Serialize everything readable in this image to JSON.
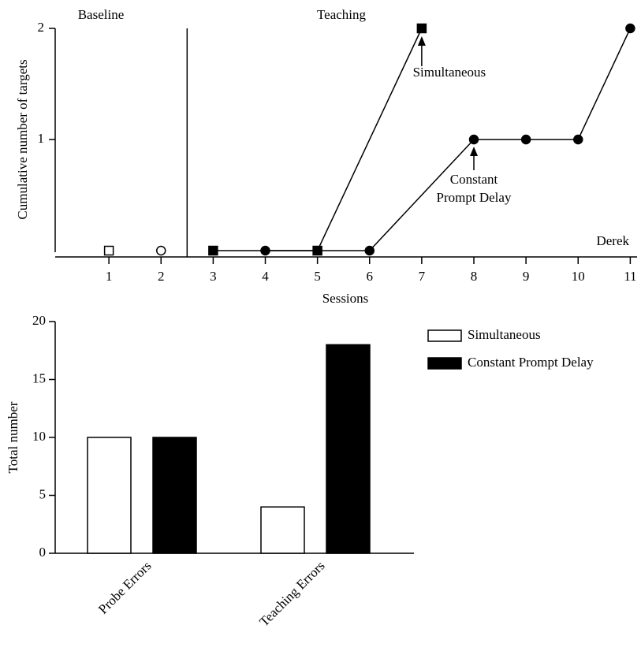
{
  "chart_data": [
    {
      "type": "line",
      "x_label": "Sessions",
      "y_label": "Cumulative number of targets",
      "phases": [
        "Baseline",
        "Teaching"
      ],
      "phase_change_x": 2.5,
      "participant": "Derek",
      "annotations": [
        "Simultaneous",
        "Constant",
        "Prompt Delay"
      ],
      "xlim": [
        0,
        11.1
      ],
      "xticks": [
        1,
        2,
        3,
        4,
        5,
        6,
        7,
        8,
        9,
        10,
        11
      ],
      "ylim": [
        0,
        2
      ],
      "yticks": [
        1,
        2
      ],
      "series": [
        {
          "marker": "square",
          "filled": false,
          "connected": false,
          "color": "#000000",
          "x": [
            1
          ],
          "values": [
            0
          ]
        },
        {
          "marker": "circle",
          "filled": false,
          "connected": false,
          "color": "#000000",
          "x": [
            2
          ],
          "values": [
            0
          ]
        },
        {
          "marker": "square",
          "filled": true,
          "connected": true,
          "color": "#000000",
          "x": [
            3,
            5,
            7
          ],
          "values": [
            0,
            0,
            2
          ]
        },
        {
          "marker": "circle",
          "filled": true,
          "connected": true,
          "color": "#000000",
          "x": [
            4,
            6,
            8,
            9,
            10,
            11
          ],
          "values": [
            0,
            0,
            1,
            1,
            1,
            2
          ]
        }
      ]
    },
    {
      "type": "bar",
      "y_label": "Total number",
      "categories": [
        "Probe Errors",
        "Teaching Errors"
      ],
      "ylim": [
        0,
        20
      ],
      "yticks": [
        0,
        5,
        10,
        15,
        20
      ],
      "series": [
        {
          "name": "Simultaneous",
          "color": "#ffffff",
          "values": [
            10,
            4
          ]
        },
        {
          "name": "Constant Prompt Delay",
          "color": "#000000",
          "values": [
            10,
            18
          ]
        }
      ]
    }
  ]
}
